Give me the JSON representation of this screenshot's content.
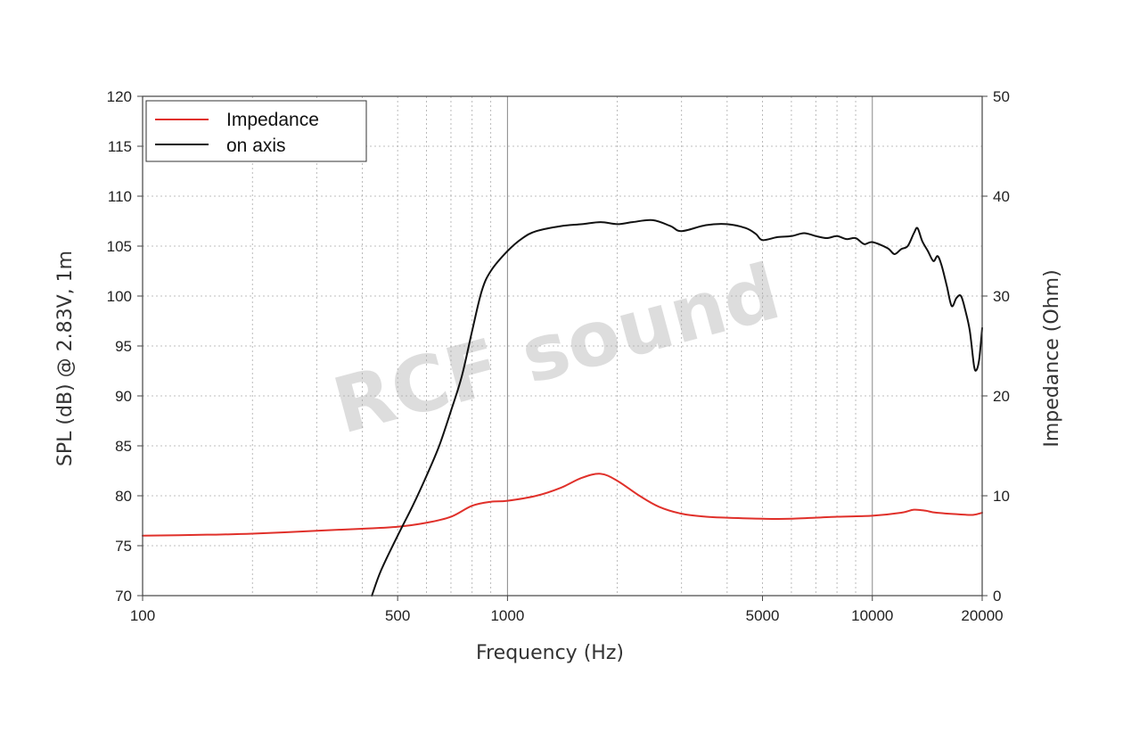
{
  "chart_data": {
    "type": "line",
    "xlabel": "Frequency (Hz)",
    "ylabel": "SPL (dB) @ 2.83V, 1m",
    "y2label": "Impedance (Ohm)",
    "xscale": "log",
    "xlim": [
      100,
      20000
    ],
    "ylim": [
      70,
      120
    ],
    "y2lim": [
      0,
      50
    ],
    "x_ticks": [
      100,
      500,
      1000,
      5000,
      10000,
      20000
    ],
    "x_tick_labels": [
      "100",
      "500",
      "1000",
      "5000",
      "10000",
      "20000"
    ],
    "y_ticks": [
      70,
      75,
      80,
      85,
      90,
      95,
      100,
      105,
      110,
      115,
      120
    ],
    "y_tick_labels": [
      "70",
      "75",
      "80",
      "85",
      "90",
      "95",
      "100",
      "105",
      "110",
      "115",
      "120"
    ],
    "y2_ticks": [
      0,
      10,
      20,
      30,
      40,
      50
    ],
    "y2_tick_labels": [
      "0",
      "10",
      "20",
      "30",
      "40",
      "50"
    ],
    "grid": true,
    "legend_position": "top-left",
    "watermark": "RCF sound",
    "series": [
      {
        "name": "Impedance",
        "axis": "right",
        "color": "#e0302a",
        "points": [
          [
            100,
            6.0
          ],
          [
            150,
            6.1
          ],
          [
            200,
            6.2
          ],
          [
            300,
            6.5
          ],
          [
            400,
            6.7
          ],
          [
            500,
            6.9
          ],
          [
            600,
            7.3
          ],
          [
            700,
            7.9
          ],
          [
            800,
            9.0
          ],
          [
            900,
            9.4
          ],
          [
            1000,
            9.5
          ],
          [
            1200,
            10.0
          ],
          [
            1400,
            10.8
          ],
          [
            1600,
            11.8
          ],
          [
            1800,
            12.2
          ],
          [
            2000,
            11.5
          ],
          [
            2300,
            10.0
          ],
          [
            2600,
            8.9
          ],
          [
            3000,
            8.2
          ],
          [
            3500,
            7.9
          ],
          [
            4000,
            7.8
          ],
          [
            5000,
            7.7
          ],
          [
            6000,
            7.7
          ],
          [
            8000,
            7.9
          ],
          [
            10000,
            8.0
          ],
          [
            12000,
            8.3
          ],
          [
            13000,
            8.6
          ],
          [
            14000,
            8.5
          ],
          [
            15000,
            8.3
          ],
          [
            18000,
            8.1
          ],
          [
            19000,
            8.1
          ],
          [
            20000,
            8.3
          ]
        ]
      },
      {
        "name": "on axis",
        "axis": "left",
        "color": "#111111",
        "points": [
          [
            425,
            70.0
          ],
          [
            450,
            72.5
          ],
          [
            500,
            76.0
          ],
          [
            550,
            79.0
          ],
          [
            600,
            82.0
          ],
          [
            650,
            85.0
          ],
          [
            700,
            88.5
          ],
          [
            750,
            92.0
          ],
          [
            800,
            96.5
          ],
          [
            850,
            100.5
          ],
          [
            900,
            102.5
          ],
          [
            1000,
            104.5
          ],
          [
            1100,
            105.8
          ],
          [
            1200,
            106.5
          ],
          [
            1400,
            107.0
          ],
          [
            1600,
            107.2
          ],
          [
            1800,
            107.4
          ],
          [
            2000,
            107.2
          ],
          [
            2200,
            107.4
          ],
          [
            2500,
            107.6
          ],
          [
            2800,
            107.0
          ],
          [
            3000,
            106.5
          ],
          [
            3500,
            107.1
          ],
          [
            4000,
            107.2
          ],
          [
            4500,
            106.8
          ],
          [
            4800,
            106.2
          ],
          [
            5000,
            105.6
          ],
          [
            5500,
            105.9
          ],
          [
            6000,
            106.0
          ],
          [
            6500,
            106.3
          ],
          [
            7000,
            106.0
          ],
          [
            7500,
            105.8
          ],
          [
            8000,
            106.0
          ],
          [
            8500,
            105.7
          ],
          [
            9000,
            105.8
          ],
          [
            9500,
            105.2
          ],
          [
            10000,
            105.4
          ],
          [
            11000,
            104.8
          ],
          [
            11500,
            104.2
          ],
          [
            12000,
            104.7
          ],
          [
            12500,
            105.0
          ],
          [
            13000,
            106.3
          ],
          [
            13300,
            106.8
          ],
          [
            13700,
            105.5
          ],
          [
            14200,
            104.5
          ],
          [
            14700,
            103.5
          ],
          [
            15100,
            104.0
          ],
          [
            15500,
            103.0
          ],
          [
            16000,
            101.0
          ],
          [
            16500,
            99.0
          ],
          [
            17000,
            99.8
          ],
          [
            17500,
            100.0
          ],
          [
            18000,
            98.5
          ],
          [
            18500,
            96.5
          ],
          [
            19000,
            93.0
          ],
          [
            19300,
            92.6
          ],
          [
            19600,
            93.5
          ],
          [
            19800,
            95.0
          ],
          [
            20000,
            96.8
          ]
        ]
      }
    ]
  }
}
